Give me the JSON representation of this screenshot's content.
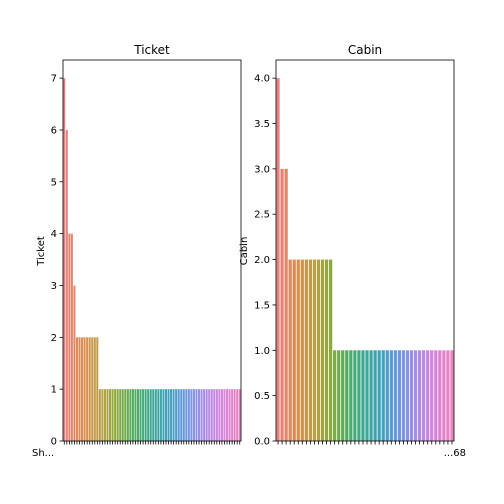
{
  "chart_data": [
    {
      "type": "bar",
      "title": "Ticket",
      "xlabel": "",
      "ylabel": "Ticket",
      "ylim": [
        0,
        7.35
      ],
      "yticks": [
        0,
        1,
        2,
        3,
        4,
        5,
        6,
        7
      ],
      "x_tick_text": "Sh...",
      "values": [
        7,
        6,
        4,
        4,
        3,
        2,
        2,
        2,
        2,
        2,
        2,
        2,
        2,
        2,
        1,
        1,
        1,
        1,
        1,
        1,
        1,
        1,
        1,
        1,
        1,
        1,
        1,
        1,
        1,
        1,
        1,
        1,
        1,
        1,
        1,
        1,
        1,
        1,
        1,
        1,
        1,
        1,
        1,
        1,
        1,
        1,
        1,
        1,
        1,
        1,
        1,
        1,
        1,
        1,
        1,
        1,
        1,
        1,
        1,
        1,
        1,
        1,
        1,
        1,
        1,
        1,
        1,
        1,
        1,
        1
      ],
      "grid": false,
      "legend": "none"
    },
    {
      "type": "bar",
      "title": "Cabin",
      "xlabel": "",
      "ylabel": "Cabin",
      "ylim": [
        0,
        4.2
      ],
      "yticks": [
        0.0,
        0.5,
        1.0,
        1.5,
        2.0,
        2.5,
        3.0,
        3.5,
        4.0
      ],
      "x_tick_text": "...68",
      "values": [
        4,
        3,
        3,
        2,
        2,
        2,
        2,
        2,
        2,
        2,
        2,
        2,
        2,
        2,
        1,
        1,
        1,
        1,
        1,
        1,
        1,
        1,
        1,
        1,
        1,
        1,
        1,
        1,
        1,
        1,
        1,
        1,
        1,
        1,
        1,
        1,
        1,
        1,
        1,
        1,
        1,
        1,
        1,
        1
      ],
      "grid": false,
      "legend": "none"
    }
  ]
}
